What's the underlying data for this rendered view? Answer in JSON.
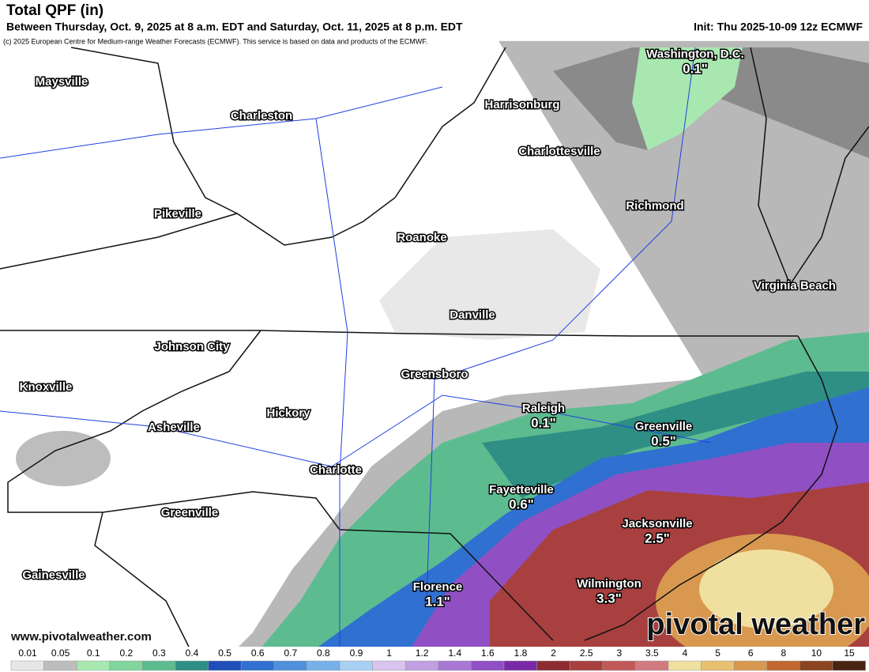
{
  "header": {
    "title": "Total QPF (in)",
    "subtitle": "Between Thursday, Oct. 9, 2025 at 8 a.m. EDT and Saturday, Oct. 11, 2025 at 8 p.m. EDT",
    "init": "Init: Thu 2025-10-09 12z ECMWF",
    "credit": "(c) 2025 European Centre for Medium-range Weather Forecasts (ECMWF). This service is based on data and products of the ECMWF."
  },
  "cities": [
    {
      "name": "Maysville"
    },
    {
      "name": "Charleston"
    },
    {
      "name": "Harrisonburg"
    },
    {
      "name": "Washington, D.C.",
      "amount": "0.1\""
    },
    {
      "name": "Charlottesville"
    },
    {
      "name": "Pikeville"
    },
    {
      "name": "Richmond"
    },
    {
      "name": "Roanoke"
    },
    {
      "name": "Virginia Beach"
    },
    {
      "name": "Danville"
    },
    {
      "name": "Johnson City"
    },
    {
      "name": "Greensboro"
    },
    {
      "name": "Knoxville"
    },
    {
      "name": "Raleigh",
      "amount": "0.1\""
    },
    {
      "name": "Hickory"
    },
    {
      "name": "Greenville",
      "amount": "0.5\""
    },
    {
      "name": "Asheville"
    },
    {
      "name": "Charlotte"
    },
    {
      "name": "Fayetteville",
      "amount": "0.6\""
    },
    {
      "name": "Greenville"
    },
    {
      "name": "Jacksonville",
      "amount": "2.5\""
    },
    {
      "name": "Gainesville"
    },
    {
      "name": "Wilmington",
      "amount": "3.3\""
    },
    {
      "name": "Florence",
      "amount": "1.1\""
    }
  ],
  "watermark": "pivotal weather",
  "url": "www.pivotalweather.com",
  "colorbar": {
    "ticks": [
      0.01,
      0.05,
      0.1,
      0.2,
      0.3,
      0.4,
      0.5,
      0.6,
      0.7,
      0.8,
      0.9,
      1,
      1.2,
      1.4,
      1.6,
      1.8,
      2,
      2.5,
      3,
      3.5,
      4,
      5,
      6,
      8,
      10,
      15
    ],
    "colors": [
      "#e6e6e6",
      "#bdbdbd",
      "#a8e8b0",
      "#80d49c",
      "#5cbc90",
      "#2f8f84",
      "#1f4fb8",
      "#3070d0",
      "#5090dc",
      "#78b0e8",
      "#a8d0f2",
      "#d8c4ec",
      "#c0a0e0",
      "#a878d4",
      "#9050c4",
      "#7a2aa8",
      "#8c2c30",
      "#a84040",
      "#c05a58",
      "#d07a80",
      "#f0e0a0",
      "#e8c070",
      "#d89850",
      "#c06830",
      "#8a4420",
      "#4a2410"
    ]
  }
}
